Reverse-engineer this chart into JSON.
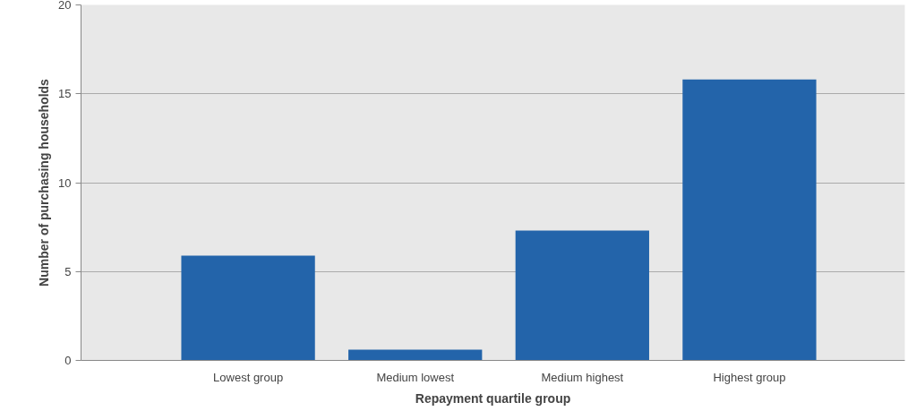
{
  "chart_data": {
    "type": "bar",
    "xlabel": "Repayment quartile group",
    "ylabel": "Number of purchasing households",
    "categories": [
      "Lowest group",
      "Medium lowest",
      "Medium highest",
      "Highest group"
    ],
    "values": [
      5.9,
      0.6,
      7.3,
      15.8
    ],
    "color": "#2364aa",
    "ylim": [
      0,
      20
    ],
    "yticks": [
      0,
      5,
      10,
      15,
      20
    ],
    "grid": "y"
  }
}
